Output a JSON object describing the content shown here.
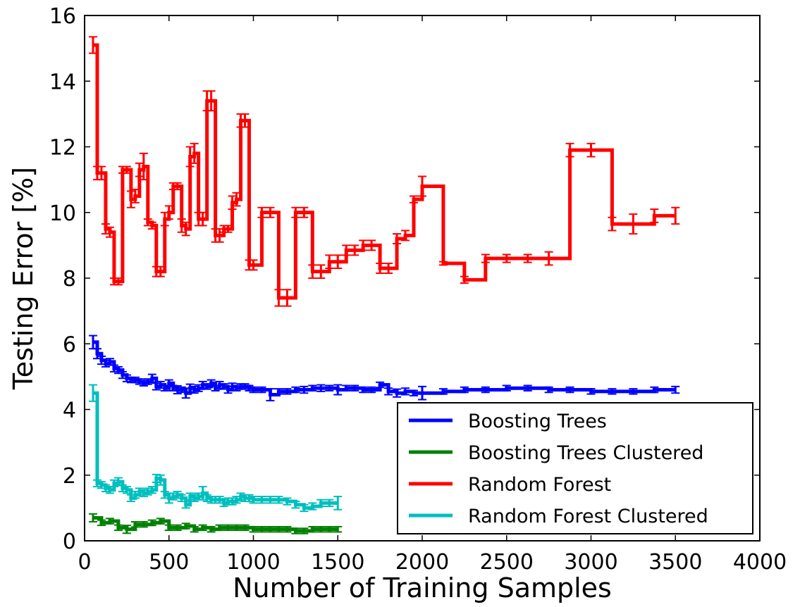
{
  "chart_data": {
    "type": "line",
    "title": "",
    "xlabel": "Number of Training Samples",
    "ylabel": "Testing Error [%]",
    "xlim": [
      0,
      4000
    ],
    "ylim": [
      0,
      16
    ],
    "xticks": [
      0,
      500,
      1000,
      1500,
      2000,
      2500,
      3000,
      3500,
      4000
    ],
    "yticks": [
      0,
      2,
      4,
      6,
      8,
      10,
      12,
      14,
      16
    ],
    "grid": false,
    "legend_position": "bottom-right",
    "series": [
      {
        "name": "Boosting Trees",
        "color": "#0000ff",
        "x": [
          50,
          75,
          100,
          125,
          150,
          175,
          200,
          225,
          250,
          275,
          300,
          325,
          350,
          375,
          400,
          425,
          450,
          475,
          500,
          525,
          550,
          575,
          600,
          625,
          650,
          675,
          700,
          725,
          750,
          775,
          800,
          825,
          850,
          875,
          900,
          925,
          950,
          975,
          1000,
          1050,
          1100,
          1150,
          1200,
          1250,
          1300,
          1350,
          1400,
          1450,
          1500,
          1550,
          1600,
          1650,
          1700,
          1750,
          1800,
          1850,
          1900,
          1950,
          2000,
          2125,
          2250,
          2375,
          2500,
          2625,
          2750,
          2875,
          3000,
          3125,
          3250,
          3375,
          3500
        ],
        "y": [
          6.05,
          5.7,
          5.5,
          5.4,
          5.45,
          5.25,
          5.2,
          5.05,
          4.95,
          4.9,
          4.9,
          4.85,
          4.8,
          4.85,
          4.95,
          4.7,
          4.75,
          4.65,
          4.8,
          4.65,
          4.6,
          4.6,
          4.5,
          4.65,
          4.6,
          4.65,
          4.75,
          4.7,
          4.8,
          4.65,
          4.75,
          4.7,
          4.6,
          4.7,
          4.65,
          4.7,
          4.7,
          4.65,
          4.6,
          4.6,
          4.45,
          4.55,
          4.55,
          4.6,
          4.6,
          4.65,
          4.65,
          4.65,
          4.6,
          4.65,
          4.65,
          4.6,
          4.6,
          4.75,
          4.55,
          4.5,
          4.55,
          4.5,
          4.5,
          4.55,
          4.6,
          4.6,
          4.65,
          4.65,
          4.6,
          4.6,
          4.55,
          4.55,
          4.55,
          4.6,
          4.6
        ],
        "err": [
          0.2,
          0.15,
          0.12,
          0.1,
          0.1,
          0.1,
          0.1,
          0.1,
          0.1,
          0.08,
          0.08,
          0.08,
          0.08,
          0.08,
          0.12,
          0.1,
          0.1,
          0.08,
          0.1,
          0.08,
          0.12,
          0.08,
          0.15,
          0.12,
          0.1,
          0.1,
          0.1,
          0.08,
          0.1,
          0.08,
          0.1,
          0.08,
          0.1,
          0.1,
          0.08,
          0.08,
          0.08,
          0.08,
          0.08,
          0.08,
          0.18,
          0.08,
          0.08,
          0.08,
          0.1,
          0.08,
          0.1,
          0.08,
          0.15,
          0.08,
          0.08,
          0.08,
          0.08,
          0.08,
          0.1,
          0.12,
          0.1,
          0.08,
          0.2,
          0.08,
          0.08,
          0.08,
          0.08,
          0.08,
          0.08,
          0.08,
          0.08,
          0.08,
          0.08,
          0.08,
          0.1
        ]
      },
      {
        "name": "Boosting Trees Clustered",
        "color": "#008000",
        "x": [
          50,
          100,
          150,
          200,
          250,
          300,
          350,
          400,
          450,
          500,
          550,
          600,
          650,
          700,
          750,
          800,
          850,
          900,
          950,
          1000,
          1050,
          1100,
          1150,
          1200,
          1250,
          1300,
          1350,
          1400,
          1450,
          1500
        ],
        "y": [
          0.7,
          0.55,
          0.6,
          0.4,
          0.35,
          0.5,
          0.5,
          0.55,
          0.6,
          0.4,
          0.4,
          0.45,
          0.35,
          0.4,
          0.35,
          0.4,
          0.4,
          0.4,
          0.4,
          0.35,
          0.35,
          0.35,
          0.35,
          0.35,
          0.3,
          0.3,
          0.35,
          0.35,
          0.35,
          0.35
        ],
        "err": [
          0.12,
          0.08,
          0.08,
          0.08,
          0.12,
          0.08,
          0.08,
          0.08,
          0.08,
          0.08,
          0.08,
          0.08,
          0.08,
          0.08,
          0.08,
          0.08,
          0.08,
          0.08,
          0.08,
          0.08,
          0.08,
          0.08,
          0.08,
          0.08,
          0.08,
          0.08,
          0.08,
          0.08,
          0.08,
          0.08
        ]
      },
      {
        "name": "Random Forest",
        "color": "#ff0000",
        "x": [
          50,
          75,
          100,
          125,
          150,
          175,
          200,
          225,
          250,
          275,
          300,
          325,
          350,
          375,
          400,
          425,
          450,
          475,
          500,
          525,
          550,
          575,
          600,
          625,
          650,
          675,
          700,
          725,
          750,
          775,
          800,
          825,
          850,
          875,
          900,
          925,
          950,
          975,
          1000,
          1050,
          1100,
          1150,
          1200,
          1250,
          1300,
          1350,
          1400,
          1450,
          1500,
          1550,
          1600,
          1650,
          1700,
          1750,
          1800,
          1850,
          1900,
          1950,
          2000,
          2125,
          2250,
          2375,
          2500,
          2625,
          2750,
          2875,
          3000,
          3125,
          3250,
          3375,
          3500
        ],
        "y": [
          15.1,
          11.2,
          11.2,
          9.5,
          9.4,
          7.9,
          7.9,
          11.3,
          11.3,
          10.4,
          10.5,
          11.3,
          11.4,
          9.7,
          9.6,
          8.2,
          8.2,
          9.8,
          10.0,
          10.8,
          10.8,
          9.6,
          9.5,
          11.7,
          11.8,
          9.8,
          9.8,
          13.4,
          13.4,
          9.3,
          9.3,
          9.5,
          9.5,
          10.3,
          10.4,
          12.8,
          12.8,
          8.4,
          8.4,
          10.0,
          10.0,
          7.4,
          7.4,
          10.0,
          10.0,
          8.2,
          8.2,
          8.5,
          8.5,
          8.85,
          8.85,
          9.0,
          9.0,
          8.3,
          8.3,
          9.2,
          9.3,
          10.4,
          10.8,
          8.45,
          7.95,
          8.6,
          8.6,
          8.6,
          8.6,
          11.9,
          11.9,
          9.65,
          9.65,
          9.9,
          9.9
        ],
        "err": [
          0.25,
          0.2,
          0.2,
          0.15,
          0.15,
          0.1,
          0.1,
          0.1,
          0.1,
          0.25,
          0.2,
          0.2,
          0.4,
          0.1,
          0.1,
          0.15,
          0.15,
          0.2,
          0.2,
          0.1,
          0.1,
          0.2,
          0.2,
          0.3,
          0.3,
          0.2,
          0.2,
          0.3,
          0.3,
          0.2,
          0.2,
          0.1,
          0.1,
          0.2,
          0.2,
          0.2,
          0.2,
          0.15,
          0.15,
          0.15,
          0.15,
          0.25,
          0.25,
          0.15,
          0.15,
          0.2,
          0.2,
          0.2,
          0.2,
          0.15,
          0.15,
          0.15,
          0.15,
          0.15,
          0.15,
          0.15,
          0.15,
          0.1,
          0.3,
          0.05,
          0.1,
          0.12,
          0.12,
          0.12,
          0.2,
          0.2,
          0.2,
          0.2,
          0.3,
          0.2,
          0.25
        ]
      },
      {
        "name": "Random Forest Clustered",
        "color": "#00bfbf",
        "x": [
          50,
          75,
          100,
          125,
          150,
          175,
          200,
          225,
          250,
          275,
          300,
          325,
          350,
          375,
          400,
          425,
          450,
          475,
          500,
          525,
          550,
          575,
          600,
          625,
          650,
          675,
          700,
          725,
          750,
          775,
          800,
          825,
          850,
          875,
          900,
          925,
          950,
          975,
          1000,
          1050,
          1100,
          1150,
          1200,
          1250,
          1300,
          1350,
          1400,
          1450,
          1500
        ],
        "y": [
          4.5,
          1.75,
          1.7,
          1.6,
          1.55,
          1.75,
          1.8,
          1.6,
          1.55,
          1.3,
          1.4,
          1.5,
          1.45,
          1.5,
          1.55,
          1.9,
          1.85,
          1.4,
          1.3,
          1.35,
          1.4,
          1.3,
          1.1,
          1.35,
          1.3,
          1.35,
          1.45,
          1.3,
          1.25,
          1.25,
          1.25,
          1.15,
          1.2,
          1.2,
          1.25,
          1.35,
          1.3,
          1.3,
          1.25,
          1.25,
          1.25,
          1.25,
          1.2,
          1.1,
          1.0,
          1.05,
          1.15,
          1.15,
          1.15
        ],
        "err": [
          0.25,
          0.1,
          0.1,
          0.1,
          0.1,
          0.1,
          0.12,
          0.1,
          0.1,
          0.1,
          0.1,
          0.1,
          0.1,
          0.1,
          0.1,
          0.12,
          0.15,
          0.1,
          0.15,
          0.1,
          0.1,
          0.1,
          0.1,
          0.1,
          0.1,
          0.1,
          0.2,
          0.1,
          0.1,
          0.1,
          0.1,
          0.1,
          0.1,
          0.1,
          0.1,
          0.1,
          0.1,
          0.1,
          0.1,
          0.1,
          0.1,
          0.1,
          0.1,
          0.1,
          0.1,
          0.1,
          0.1,
          0.1,
          0.2
        ]
      }
    ]
  }
}
